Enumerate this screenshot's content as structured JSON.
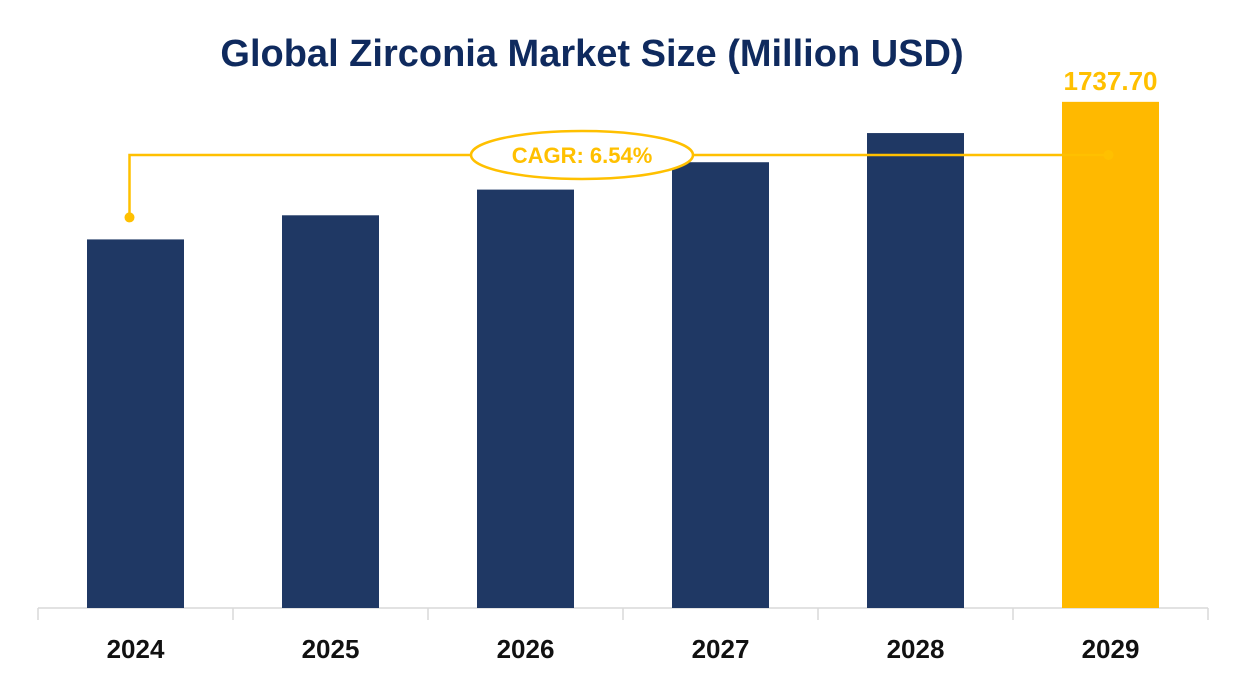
{
  "chart_data": {
    "type": "bar",
    "title": "Global Zirconia Market Size (Million USD)",
    "categories": [
      "2024",
      "2025",
      "2026",
      "2027",
      "2028",
      "2029"
    ],
    "values": [
      1265.4,
      1348.2,
      1436.4,
      1530.4,
      1630.5,
      1737.7
    ],
    "data_labels": [
      "",
      "",
      "",
      "",
      "",
      "1737.70"
    ],
    "highlight_index": 5,
    "annotation": {
      "label": "CAGR: 6.54%",
      "from_index": 0,
      "to_index": 5
    },
    "xlabel": "",
    "ylabel": "",
    "ylim": [
      0,
      1950
    ],
    "grid": false,
    "legend": "none",
    "colors": {
      "bar": "#1f3864",
      "highlight": "#ffb900",
      "accent": "#ffc000",
      "title": "#0f2a5e",
      "axis": "#d9d9d9"
    }
  }
}
